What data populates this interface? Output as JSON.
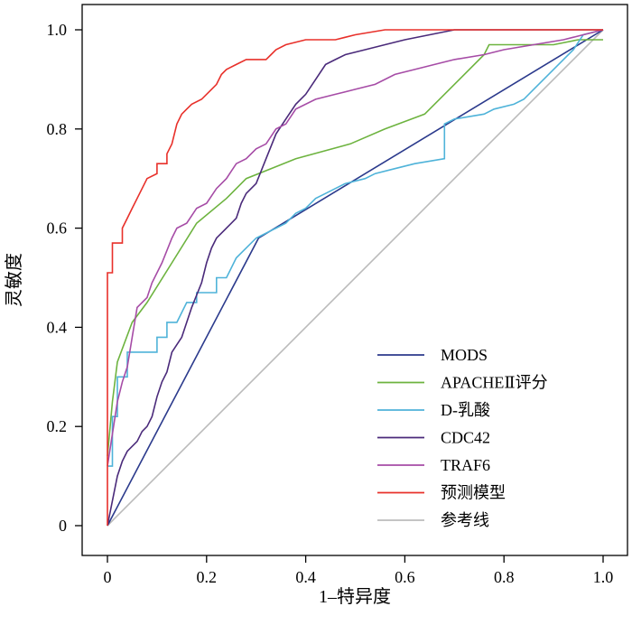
{
  "chart_data": {
    "type": "line",
    "title": "",
    "xlabel": "1–特异度",
    "ylabel": "灵敏度",
    "xlim": [
      0,
      1
    ],
    "ylim": [
      0,
      1
    ],
    "xticks": [
      0,
      0.2,
      0.4,
      0.6,
      0.8,
      1.0
    ],
    "xtick_labels": [
      "0",
      "0.2",
      "0.4",
      "0.6",
      "0.8",
      "1.0"
    ],
    "yticks": [
      0,
      0.2,
      0.4,
      0.6,
      0.8,
      1.0
    ],
    "ytick_labels": [
      "0",
      "0.2",
      "0.4",
      "0.6",
      "0.8",
      "1.0"
    ],
    "grid": false,
    "legend_position": "bottom-right",
    "series": [
      {
        "name": "MODS",
        "color": "#2b3a8c",
        "points": [
          [
            0,
            0
          ],
          [
            0.305,
            0.58
          ],
          [
            1.0,
            1.0
          ]
        ]
      },
      {
        "name": "APACHEⅡ评分",
        "color": "#6db33f",
        "points": [
          [
            0,
            0.14
          ],
          [
            0.01,
            0.25
          ],
          [
            0.02,
            0.33
          ],
          [
            0.05,
            0.41
          ],
          [
            0.08,
            0.45
          ],
          [
            0.13,
            0.53
          ],
          [
            0.18,
            0.61
          ],
          [
            0.24,
            0.66
          ],
          [
            0.28,
            0.7
          ],
          [
            0.33,
            0.72
          ],
          [
            0.38,
            0.74
          ],
          [
            0.49,
            0.77
          ],
          [
            0.56,
            0.8
          ],
          [
            0.64,
            0.83
          ],
          [
            0.7,
            0.89
          ],
          [
            0.76,
            0.95
          ],
          [
            0.77,
            0.97
          ],
          [
            0.82,
            0.97
          ],
          [
            0.9,
            0.97
          ],
          [
            0.95,
            0.98
          ],
          [
            1.0,
            0.98
          ]
        ]
      },
      {
        "name": "D-乳酸",
        "color": "#4fb3d9",
        "points": [
          [
            0,
            0.12
          ],
          [
            0.01,
            0.12
          ],
          [
            0.01,
            0.22
          ],
          [
            0.02,
            0.22
          ],
          [
            0.02,
            0.3
          ],
          [
            0.04,
            0.3
          ],
          [
            0.04,
            0.35
          ],
          [
            0.1,
            0.35
          ],
          [
            0.1,
            0.38
          ],
          [
            0.12,
            0.38
          ],
          [
            0.12,
            0.41
          ],
          [
            0.14,
            0.41
          ],
          [
            0.16,
            0.45
          ],
          [
            0.18,
            0.45
          ],
          [
            0.18,
            0.47
          ],
          [
            0.22,
            0.47
          ],
          [
            0.22,
            0.5
          ],
          [
            0.24,
            0.5
          ],
          [
            0.26,
            0.54
          ],
          [
            0.28,
            0.56
          ],
          [
            0.3,
            0.58
          ],
          [
            0.34,
            0.6
          ],
          [
            0.36,
            0.61
          ],
          [
            0.38,
            0.63
          ],
          [
            0.4,
            0.64
          ],
          [
            0.42,
            0.66
          ],
          [
            0.44,
            0.67
          ],
          [
            0.46,
            0.68
          ],
          [
            0.48,
            0.69
          ],
          [
            0.52,
            0.7
          ],
          [
            0.54,
            0.71
          ],
          [
            0.58,
            0.72
          ],
          [
            0.62,
            0.73
          ],
          [
            0.68,
            0.74
          ],
          [
            0.68,
            0.81
          ],
          [
            0.7,
            0.82
          ],
          [
            0.76,
            0.83
          ],
          [
            0.78,
            0.84
          ],
          [
            0.82,
            0.85
          ],
          [
            0.84,
            0.86
          ],
          [
            0.86,
            0.88
          ],
          [
            0.88,
            0.9
          ],
          [
            0.9,
            0.92
          ],
          [
            0.92,
            0.94
          ],
          [
            0.94,
            0.96
          ],
          [
            0.96,
            0.99
          ],
          [
            1.0,
            1.0
          ]
        ]
      },
      {
        "name": "CDC42",
        "color": "#4a2a7a",
        "points": [
          [
            0,
            0
          ],
          [
            0.01,
            0.05
          ],
          [
            0.02,
            0.1
          ],
          [
            0.03,
            0.13
          ],
          [
            0.04,
            0.15
          ],
          [
            0.06,
            0.17
          ],
          [
            0.07,
            0.19
          ],
          [
            0.08,
            0.2
          ],
          [
            0.09,
            0.22
          ],
          [
            0.1,
            0.26
          ],
          [
            0.11,
            0.29
          ],
          [
            0.12,
            0.31
          ],
          [
            0.13,
            0.35
          ],
          [
            0.15,
            0.38
          ],
          [
            0.16,
            0.41
          ],
          [
            0.17,
            0.44
          ],
          [
            0.19,
            0.49
          ],
          [
            0.2,
            0.53
          ],
          [
            0.21,
            0.56
          ],
          [
            0.22,
            0.58
          ],
          [
            0.24,
            0.6
          ],
          [
            0.26,
            0.62
          ],
          [
            0.27,
            0.65
          ],
          [
            0.28,
            0.67
          ],
          [
            0.3,
            0.69
          ],
          [
            0.32,
            0.74
          ],
          [
            0.34,
            0.79
          ],
          [
            0.36,
            0.82
          ],
          [
            0.38,
            0.85
          ],
          [
            0.4,
            0.87
          ],
          [
            0.42,
            0.9
          ],
          [
            0.44,
            0.93
          ],
          [
            0.46,
            0.94
          ],
          [
            0.48,
            0.95
          ],
          [
            0.52,
            0.96
          ],
          [
            0.56,
            0.97
          ],
          [
            0.6,
            0.98
          ],
          [
            0.65,
            0.99
          ],
          [
            0.7,
            1.0
          ],
          [
            1.0,
            1.0
          ]
        ]
      },
      {
        "name": "TRAF6",
        "color": "#a64ca6",
        "points": [
          [
            0,
            0.12
          ],
          [
            0.02,
            0.25
          ],
          [
            0.03,
            0.29
          ],
          [
            0.04,
            0.32
          ],
          [
            0.05,
            0.38
          ],
          [
            0.06,
            0.44
          ],
          [
            0.08,
            0.46
          ],
          [
            0.09,
            0.49
          ],
          [
            0.11,
            0.53
          ],
          [
            0.13,
            0.58
          ],
          [
            0.14,
            0.6
          ],
          [
            0.16,
            0.61
          ],
          [
            0.18,
            0.64
          ],
          [
            0.2,
            0.65
          ],
          [
            0.22,
            0.68
          ],
          [
            0.24,
            0.7
          ],
          [
            0.26,
            0.73
          ],
          [
            0.28,
            0.74
          ],
          [
            0.3,
            0.76
          ],
          [
            0.32,
            0.77
          ],
          [
            0.34,
            0.8
          ],
          [
            0.36,
            0.81
          ],
          [
            0.38,
            0.84
          ],
          [
            0.42,
            0.86
          ],
          [
            0.46,
            0.87
          ],
          [
            0.5,
            0.88
          ],
          [
            0.54,
            0.89
          ],
          [
            0.58,
            0.91
          ],
          [
            0.62,
            0.92
          ],
          [
            0.66,
            0.93
          ],
          [
            0.7,
            0.94
          ],
          [
            0.76,
            0.95
          ],
          [
            0.8,
            0.96
          ],
          [
            0.86,
            0.97
          ],
          [
            0.92,
            0.98
          ],
          [
            0.96,
            0.99
          ],
          [
            1.0,
            1.0
          ]
        ]
      },
      {
        "name": "预测模型",
        "color": "#e8302a",
        "points": [
          [
            0,
            0
          ],
          [
            0,
            0.51
          ],
          [
            0.01,
            0.51
          ],
          [
            0.01,
            0.57
          ],
          [
            0.03,
            0.57
          ],
          [
            0.03,
            0.6
          ],
          [
            0.04,
            0.62
          ],
          [
            0.05,
            0.64
          ],
          [
            0.06,
            0.66
          ],
          [
            0.07,
            0.68
          ],
          [
            0.08,
            0.7
          ],
          [
            0.1,
            0.71
          ],
          [
            0.1,
            0.73
          ],
          [
            0.12,
            0.73
          ],
          [
            0.12,
            0.75
          ],
          [
            0.13,
            0.77
          ],
          [
            0.14,
            0.81
          ],
          [
            0.15,
            0.83
          ],
          [
            0.16,
            0.84
          ],
          [
            0.17,
            0.85
          ],
          [
            0.19,
            0.86
          ],
          [
            0.21,
            0.88
          ],
          [
            0.22,
            0.89
          ],
          [
            0.23,
            0.91
          ],
          [
            0.24,
            0.92
          ],
          [
            0.26,
            0.93
          ],
          [
            0.28,
            0.94
          ],
          [
            0.32,
            0.94
          ],
          [
            0.33,
            0.95
          ],
          [
            0.34,
            0.96
          ],
          [
            0.36,
            0.97
          ],
          [
            0.4,
            0.98
          ],
          [
            0.46,
            0.98
          ],
          [
            0.5,
            0.99
          ],
          [
            0.56,
            1.0
          ],
          [
            1.0,
            1.0
          ]
        ]
      },
      {
        "name": "参考线",
        "color": "#bbbbbb",
        "points": [
          [
            0,
            0
          ],
          [
            1.0,
            1.0
          ]
        ]
      }
    ]
  }
}
